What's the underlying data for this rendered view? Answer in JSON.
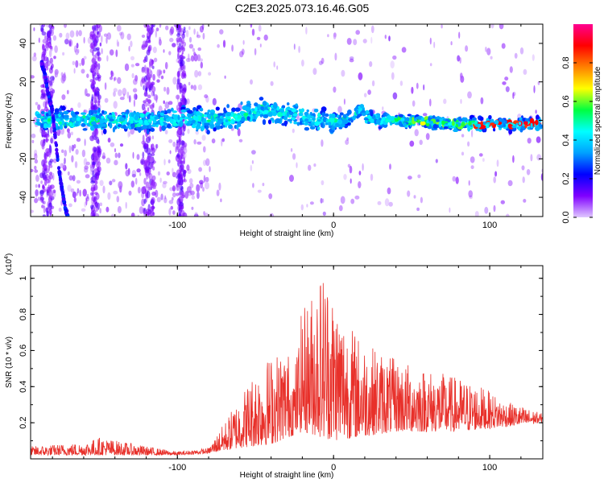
{
  "title": "C2E3.2025.073.16.46.G05",
  "chart_data": [
    {
      "type": "heatmap",
      "xlabel": "Height of straight line (km)",
      "ylabel": "Frequency (Hz)",
      "xlim": [
        -194,
        134
      ],
      "ylim": [
        -50,
        50
      ],
      "xticks": [
        -100,
        0,
        100
      ],
      "yticks": [
        -40,
        -20,
        0,
        20,
        40
      ],
      "colorbar": {
        "label": "Normalized spectral amplitude",
        "range": [
          0.0,
          1.0
        ],
        "ticks": [
          "0.0",
          "0.2",
          "0.4",
          "0.6",
          "0.8"
        ],
        "colors": [
          "#e0c8ff",
          "#8000ff",
          "#0000ff",
          "#00a0ff",
          "#00ffff",
          "#00ff40",
          "#ffff00",
          "#ff8000",
          "#ff0000",
          "#ff0090"
        ]
      },
      "ridge": {
        "description_points_x": [
          -160,
          -120,
          -100,
          -80,
          -60,
          -45,
          -38,
          -30,
          -20,
          -10,
          0,
          10,
          18,
          20,
          30,
          40,
          60,
          80,
          100,
          120,
          134
        ],
        "description_points_y": [
          0,
          0,
          1,
          0,
          2,
          6,
          4,
          3,
          2,
          0,
          -1,
          1,
          6,
          2,
          0,
          0,
          -1,
          -2,
          -2,
          -2,
          -2
        ]
      },
      "trace": {
        "x": [
          -187,
          -185,
          -183,
          -180,
          -178,
          -176,
          -174,
          -172,
          -170
        ],
        "y": [
          30,
          25,
          15,
          5,
          -10,
          -25,
          -35,
          -45,
          -50
        ]
      }
    },
    {
      "type": "line",
      "xlabel": "Height of straight line (km)",
      "ylabel": "SNR (10 * v/v)",
      "ylabel_scale": "(x10",
      "ylabel_scale_exp": "4",
      "xlim": [
        -194,
        134
      ],
      "ylim": [
        0,
        1.07
      ],
      "xticks": [
        -100,
        0,
        100
      ],
      "yticks": [
        0.2,
        0.4,
        0.6,
        0.8,
        1.0
      ],
      "color": "#e8302a",
      "envelope": {
        "x": [
          -194,
          -160,
          -150,
          -120,
          -100,
          -80,
          -70,
          -60,
          -50,
          -40,
          -30,
          -25,
          -20,
          -15,
          -10,
          -5,
          0,
          10,
          20,
          40,
          60,
          80,
          95,
          110,
          134
        ],
        "y": [
          0.07,
          0.09,
          0.12,
          0.07,
          0.04,
          0.06,
          0.2,
          0.35,
          0.5,
          0.58,
          0.62,
          0.5,
          0.85,
          0.9,
          1.05,
          1.07,
          0.95,
          0.75,
          0.65,
          0.55,
          0.5,
          0.45,
          0.4,
          0.32,
          0.25
        ]
      },
      "floor": {
        "x": [
          -194,
          -100,
          -80,
          -60,
          -40,
          -20,
          0,
          40,
          80,
          134
        ],
        "y": [
          0.02,
          0.02,
          0.03,
          0.06,
          0.08,
          0.15,
          0.1,
          0.15,
          0.15,
          0.2
        ]
      }
    }
  ]
}
